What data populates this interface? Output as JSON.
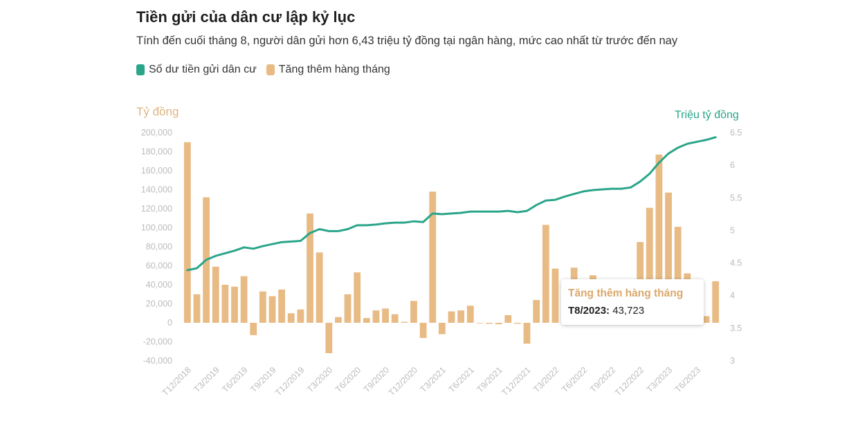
{
  "header": {
    "title": "Tiền gửi của dân cư lập kỷ lục",
    "subtitle": "Tính đến cuối tháng 8, người dân gửi hơn 6,43 triệu tỷ đồng tại ngân hàng, mức cao nhất từ trước đến nay"
  },
  "legend": {
    "line_label": "Số dư tiền gửi dân cư",
    "bar_label": "Tăng thêm hàng tháng"
  },
  "axes": {
    "left_unit": "Tỷ đồng",
    "right_unit": "Triệu tỷ đồng"
  },
  "tooltip": {
    "title": "Tăng thêm hàng tháng",
    "label": "T8/2023:",
    "value": "43,723"
  },
  "colors": {
    "line": "#2aa58a",
    "bar": "#e8bb85",
    "title": "#1f1f1f",
    "axis_text": "#bbbbbb"
  },
  "chart_data": {
    "type": "bar+line",
    "x": [
      "T12/2018",
      "T1/2019",
      "T2/2019",
      "T3/2019",
      "T4/2019",
      "T5/2019",
      "T6/2019",
      "T7/2019",
      "T8/2019",
      "T9/2019",
      "T10/2019",
      "T11/2019",
      "T12/2019",
      "T1/2020",
      "T2/2020",
      "T3/2020",
      "T4/2020",
      "T5/2020",
      "T6/2020",
      "T7/2020",
      "T8/2020",
      "T9/2020",
      "T10/2020",
      "T11/2020",
      "T12/2020",
      "T1/2021",
      "T2/2021",
      "T3/2021",
      "T4/2021",
      "T5/2021",
      "T6/2021",
      "T7/2021",
      "T8/2021",
      "T9/2021",
      "T10/2021",
      "T11/2021",
      "T12/2021",
      "T1/2022",
      "T2/2022",
      "T3/2022",
      "T4/2022",
      "T5/2022",
      "T6/2022",
      "T7/2022",
      "T8/2022",
      "T9/2022",
      "T10/2022",
      "T11/2022",
      "T12/2022",
      "T1/2023",
      "T2/2023",
      "T3/2023",
      "T4/2023",
      "T5/2023",
      "T6/2023",
      "T7/2023",
      "T8/2023"
    ],
    "x_tick_labels": [
      "T12/2018",
      "T3/2019",
      "T6/2019",
      "T9/2019",
      "T12/2019",
      "T3/2020",
      "T6/2020",
      "T9/2020",
      "T12/2020",
      "T3/2021",
      "T6/2021",
      "T9/2021",
      "T12/2021",
      "T3/2022",
      "T6/2022",
      "T9/2022",
      "T12/2022",
      "T3/2023",
      "T6/2023"
    ],
    "series": [
      {
        "name": "Tăng thêm hàng tháng",
        "type": "bar",
        "axis": "left",
        "values": [
          190000,
          30000,
          132000,
          59000,
          40000,
          38000,
          49000,
          -13000,
          33000,
          28000,
          35000,
          10000,
          14000,
          115000,
          74000,
          -32000,
          6000,
          30000,
          53000,
          5000,
          13000,
          15000,
          9000,
          1000,
          23000,
          -16000,
          138000,
          -12000,
          12000,
          13000,
          18000,
          0,
          -1000,
          -1500,
          8000,
          -1000,
          -22000,
          24000,
          103000,
          57000,
          15000,
          58000,
          41000,
          50000,
          35000,
          24000,
          11000,
          30000,
          85000,
          121000,
          177000,
          137000,
          101000,
          52000,
          30000,
          7000,
          43723
        ]
      },
      {
        "name": "Số dư tiền gửi dân cư",
        "type": "line",
        "axis": "right",
        "values": [
          4.39,
          4.42,
          4.55,
          4.61,
          4.65,
          4.69,
          4.74,
          4.72,
          4.76,
          4.79,
          4.82,
          4.83,
          4.84,
          4.96,
          5.02,
          4.99,
          4.99,
          5.02,
          5.08,
          5.08,
          5.09,
          5.11,
          5.12,
          5.12,
          5.14,
          5.13,
          5.26,
          5.25,
          5.26,
          5.27,
          5.29,
          5.29,
          5.29,
          5.29,
          5.3,
          5.28,
          5.3,
          5.39,
          5.46,
          5.47,
          5.52,
          5.56,
          5.6,
          5.62,
          5.63,
          5.64,
          5.64,
          5.66,
          5.75,
          5.87,
          6.04,
          6.18,
          6.27,
          6.33,
          6.36,
          6.39,
          6.43
        ]
      }
    ],
    "y_left": {
      "range": [
        -40000,
        200000
      ],
      "ticks": [
        "-40,000",
        "-20,000",
        "0",
        "20,000",
        "40,000",
        "60,000",
        "80,000",
        "100,000",
        "120,000",
        "140,000",
        "160,000",
        "180,000",
        "200,000"
      ]
    },
    "y_right": {
      "range": [
        3,
        6.5
      ],
      "ticks": [
        "3",
        "3.5",
        "4",
        "4.5",
        "5",
        "5.5",
        "6",
        "6.5"
      ]
    },
    "grid": false,
    "legend_position": "top-left"
  }
}
